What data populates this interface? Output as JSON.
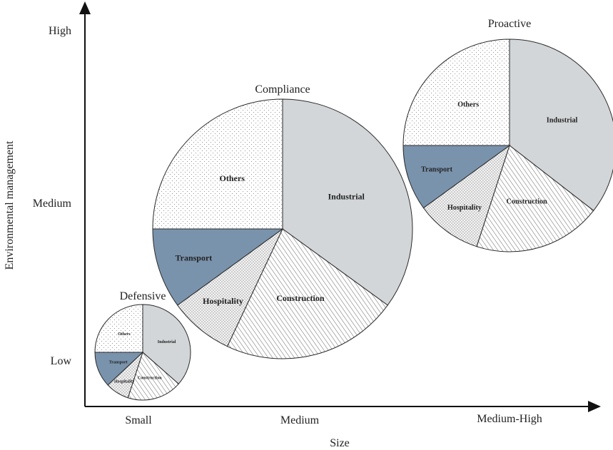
{
  "chart_data": {
    "type": "pie",
    "title": "",
    "xlabel": "Size",
    "ylabel": "Environmental management",
    "x_ticks": [
      "Small",
      "Medium",
      "Medium-High"
    ],
    "y_ticks": [
      "Low",
      "Medium",
      "High"
    ],
    "segment_order": [
      "Industrial",
      "Construction",
      "Hospitality",
      "Transport",
      "Others"
    ],
    "segment_styles": {
      "Industrial": {
        "fill": "#d3d6d8",
        "pattern": "solid-grey"
      },
      "Construction": {
        "fill": "#ffffff",
        "pattern": "diagonal-hatch"
      },
      "Hospitality": {
        "fill": "#f2f2f2",
        "pattern": "dense-dots"
      },
      "Transport": {
        "fill": "#7a93ad",
        "pattern": "solid-blue"
      },
      "Others": {
        "fill": "#ffffff",
        "pattern": "sparse-dots"
      }
    },
    "pies": [
      {
        "title": "Defensive",
        "size": "Small",
        "environmental_management": "Low",
        "slices": [
          {
            "label": "Industrial",
            "value": 36.5
          },
          {
            "label": "Construction",
            "value": 18.5
          },
          {
            "label": "Hospitality",
            "value": 8.0
          },
          {
            "label": "Transport",
            "value": 12.0
          },
          {
            "label": "Others",
            "value": 25.0
          }
        ]
      },
      {
        "title": "Compliance",
        "size": "Medium",
        "environmental_management": "Medium",
        "slices": [
          {
            "label": "Industrial",
            "value": 35.0
          },
          {
            "label": "Construction",
            "value": 22.0
          },
          {
            "label": "Hospitality",
            "value": 8.0
          },
          {
            "label": "Transport",
            "value": 10.0
          },
          {
            "label": "Others",
            "value": 25.0
          }
        ]
      },
      {
        "title": "Proactive",
        "size": "Medium-High",
        "environmental_management": "High",
        "slices": [
          {
            "label": "Industrial",
            "value": 35.5
          },
          {
            "label": "Construction",
            "value": 19.5
          },
          {
            "label": "Hospitality",
            "value": 10.0
          },
          {
            "label": "Transport",
            "value": 10.0
          },
          {
            "label": "Others",
            "value": 25.0
          }
        ]
      }
    ]
  }
}
